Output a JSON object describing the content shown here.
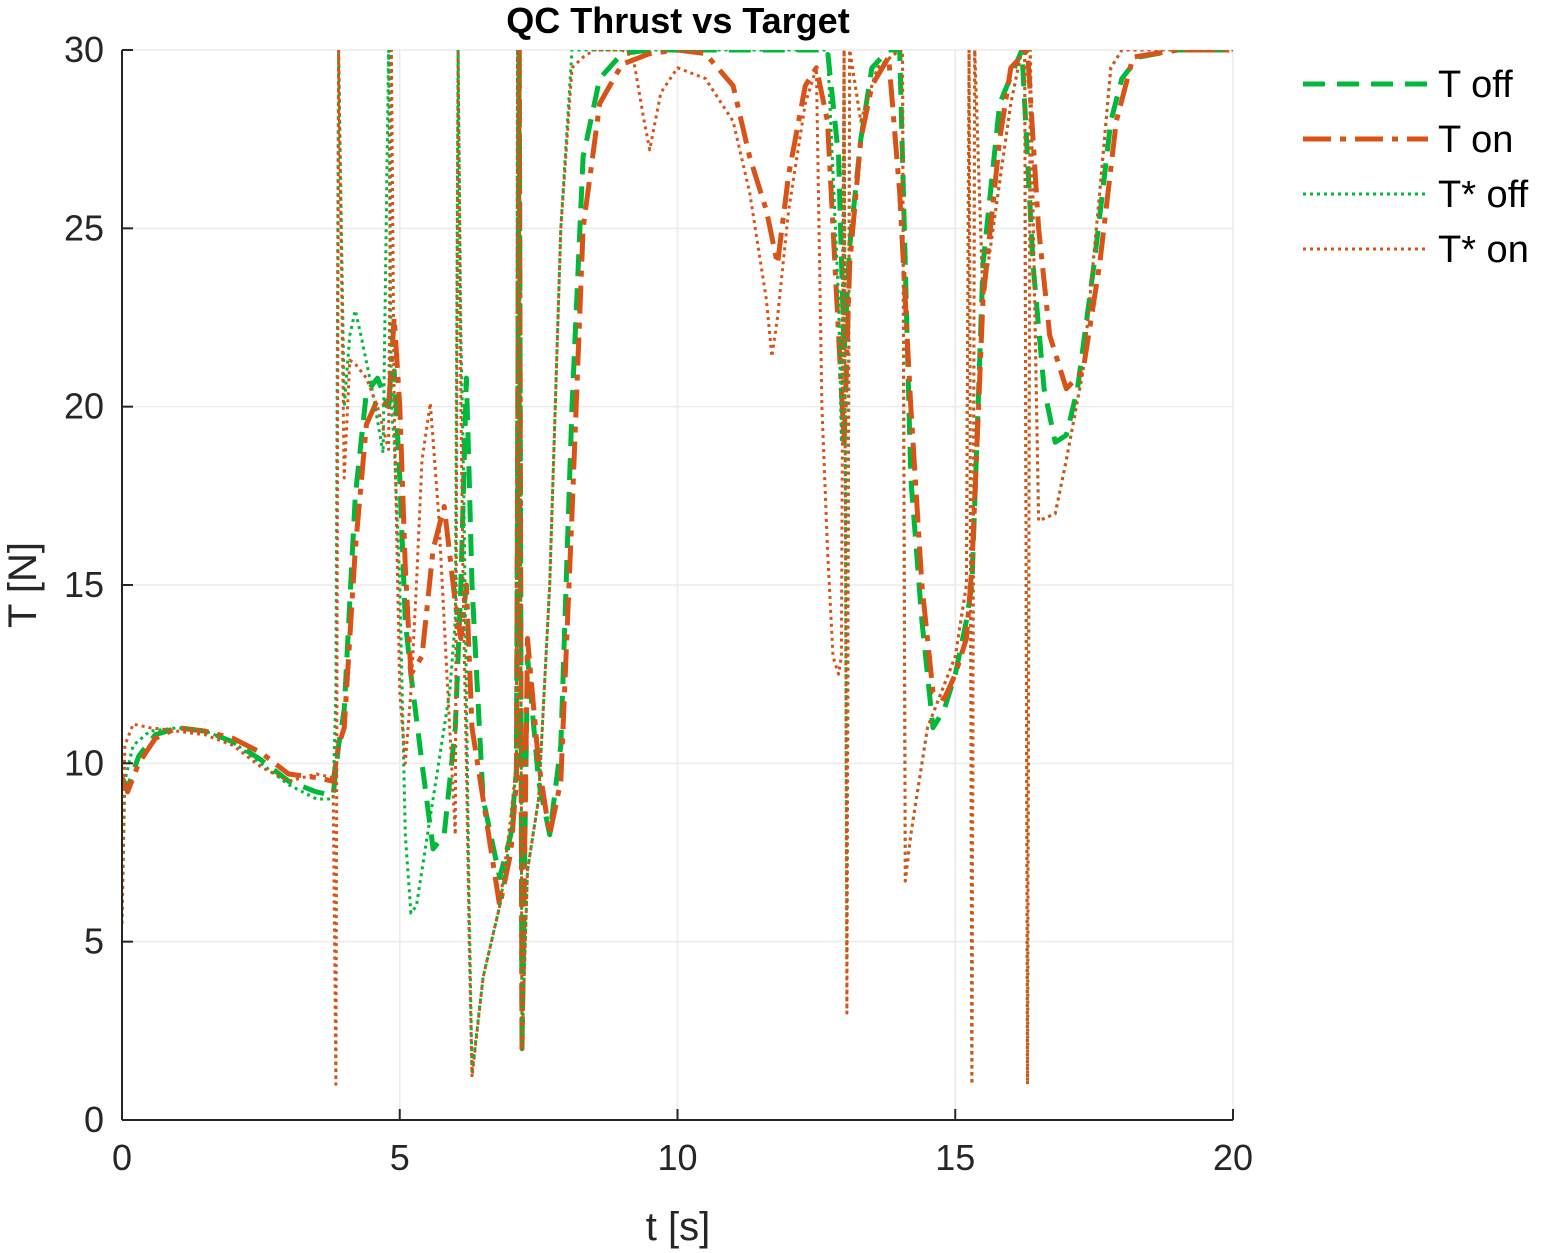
{
  "chart_data": {
    "type": "line",
    "title": "QC Thrust vs Target",
    "xlabel": "t [s]",
    "ylabel": "T [N]",
    "xlim": [
      0,
      20
    ],
    "ylim": [
      0,
      30
    ],
    "xticks": [
      0,
      5,
      10,
      15,
      20
    ],
    "yticks": [
      0,
      5,
      10,
      15,
      20,
      25,
      30
    ],
    "grid": true,
    "legend_position": "outside-top-right",
    "series": [
      {
        "name": "T off",
        "color": "#00b83a",
        "style": "dashed",
        "x": [
          0,
          0.1,
          0.3,
          0.6,
          1.0,
          1.5,
          2.0,
          2.5,
          3.0,
          3.5,
          3.8,
          3.9,
          4.0,
          4.2,
          4.4,
          4.6,
          4.8,
          4.9,
          5.0,
          5.1,
          5.2,
          5.4,
          5.6,
          5.8,
          6.0,
          6.1,
          6.2,
          6.25,
          6.3,
          6.5,
          6.8,
          7.0,
          7.1,
          7.15,
          7.2,
          7.3,
          7.5,
          7.7,
          7.9,
          8.1,
          8.3,
          8.6,
          9.0,
          9.5,
          10.0,
          11.0,
          12.0,
          12.5,
          12.7,
          12.9,
          13.0,
          13.1,
          13.3,
          13.5,
          13.8,
          14.0,
          14.2,
          14.4,
          14.6,
          14.8,
          15.0,
          15.2,
          15.3,
          15.5,
          15.8,
          16.2,
          16.4,
          16.6,
          16.8,
          17.0,
          17.2,
          17.5,
          17.8,
          18.0,
          18.3,
          19.0,
          20.0
        ],
        "values": [
          9.6,
          9.3,
          10.2,
          10.8,
          11.0,
          10.9,
          10.6,
          10.1,
          9.5,
          9.2,
          9.1,
          10.5,
          11.5,
          17.5,
          20.4,
          20.8,
          20.0,
          21.0,
          18.0,
          14.0,
          12.5,
          10.0,
          7.6,
          8.0,
          11.0,
          15.0,
          20.8,
          18.0,
          15.0,
          9.0,
          6.8,
          8.0,
          9.8,
          30.0,
          2.1,
          13.0,
          9.5,
          8.0,
          10.5,
          20.0,
          27.0,
          29.2,
          29.9,
          30.0,
          30.0,
          30.0,
          30.0,
          30.0,
          30.0,
          27.0,
          21.5,
          24.5,
          27.5,
          29.5,
          30.0,
          30.0,
          18.0,
          14.0,
          11.0,
          11.5,
          12.5,
          14.0,
          15.0,
          24.0,
          28.5,
          30.0,
          24.0,
          20.5,
          19.0,
          19.2,
          20.5,
          24.0,
          28.0,
          29.2,
          29.8,
          30.0,
          30.0
        ]
      },
      {
        "name": "T on",
        "color": "#d95319",
        "style": "dashdot",
        "x": [
          0,
          0.1,
          0.3,
          0.6,
          1.0,
          1.5,
          2.0,
          2.5,
          3.0,
          3.5,
          3.8,
          3.9,
          4.0,
          4.2,
          4.4,
          4.6,
          4.8,
          4.9,
          5.0,
          5.1,
          5.2,
          5.4,
          5.6,
          5.8,
          6.0,
          6.1,
          6.2,
          6.3,
          6.5,
          6.8,
          7.0,
          7.1,
          7.15,
          7.2,
          7.3,
          7.5,
          7.7,
          7.9,
          8.1,
          8.3,
          8.6,
          9.0,
          9.5,
          10.0,
          10.5,
          11.0,
          11.3,
          11.6,
          11.8,
          12.0,
          12.3,
          12.5,
          12.7,
          12.9,
          13.0,
          13.1,
          13.3,
          13.5,
          13.8,
          14.0,
          14.2,
          14.4,
          14.6,
          14.8,
          15.0,
          15.2,
          15.3,
          15.5,
          15.8,
          16.0,
          16.3,
          16.5,
          16.7,
          17.0,
          17.3,
          17.6,
          17.9,
          18.2,
          19.0,
          20.0
        ],
        "values": [
          9.6,
          9.2,
          10.0,
          10.7,
          11.0,
          10.9,
          10.7,
          10.3,
          9.7,
          9.6,
          9.5,
          10.5,
          11.0,
          16.0,
          19.5,
          20.2,
          20.0,
          22.5,
          20.0,
          15.5,
          12.5,
          13.0,
          16.0,
          17.2,
          14.5,
          13.5,
          15.0,
          11.0,
          9.0,
          6.0,
          7.5,
          9.5,
          30.0,
          2.0,
          13.5,
          10.0,
          8.0,
          9.5,
          17.0,
          25.0,
          28.5,
          29.6,
          29.9,
          30.0,
          29.9,
          29.0,
          27.0,
          25.5,
          24.0,
          26.5,
          29.0,
          29.5,
          28.0,
          22.0,
          19.0,
          24.0,
          27.5,
          29.0,
          29.8,
          26.0,
          20.0,
          15.0,
          12.0,
          11.8,
          12.5,
          13.5,
          15.5,
          23.0,
          27.5,
          29.5,
          30.0,
          25.0,
          22.0,
          20.5,
          21.0,
          24.0,
          28.0,
          29.8,
          30.0,
          30.0
        ]
      },
      {
        "name": "T* off",
        "color": "#00b83a",
        "style": "dotted",
        "x": [
          0,
          0.05,
          0.2,
          0.5,
          1.0,
          1.5,
          2.0,
          2.5,
          3.0,
          3.5,
          3.8,
          3.85,
          3.9,
          4.0,
          4.1,
          4.2,
          4.3,
          4.5,
          4.7,
          4.8,
          4.85,
          4.9,
          5.0,
          5.1,
          5.2,
          5.3,
          5.5,
          5.7,
          5.9,
          6.0,
          6.05,
          6.1,
          6.15,
          6.2,
          6.25,
          6.3,
          6.5,
          6.8,
          7.0,
          7.1,
          7.12,
          7.15,
          7.2,
          7.3,
          7.5,
          7.7,
          7.9,
          8.1,
          8.3,
          8.5,
          9.0,
          10.0,
          11.0,
          12.0,
          12.5,
          12.7,
          12.9,
          12.95,
          13.0,
          13.05,
          13.1,
          13.3,
          13.6,
          14.0,
          14.05,
          14.1,
          14.2,
          14.5,
          15.0,
          15.2,
          15.25,
          15.3,
          15.35,
          15.5,
          16.0,
          16.2,
          16.25,
          16.3,
          16.35,
          16.5,
          16.8,
          17.0,
          17.3,
          17.6,
          17.8,
          18.0,
          19.0,
          20.0
        ],
        "values": [
          5.5,
          9.5,
          10.5,
          10.9,
          11.0,
          10.9,
          10.6,
          10.0,
          9.4,
          9.0,
          9.0,
          12.0,
          30.0,
          20.0,
          22.0,
          22.7,
          22.0,
          20.5,
          18.7,
          30.0,
          20.0,
          19.0,
          15.0,
          8.0,
          5.8,
          6.0,
          8.0,
          10.0,
          12.0,
          14.0,
          30.0,
          22.0,
          18.0,
          12.0,
          6.0,
          1.3,
          4.0,
          6.0,
          8.0,
          10.0,
          30.0,
          30.0,
          2.0,
          7.0,
          9.0,
          15.0,
          25.0,
          30.0,
          30.0,
          30.0,
          30.0,
          30.0,
          30.0,
          30.0,
          30.0,
          30.0,
          23.0,
          19.0,
          30.0,
          4.5,
          30.0,
          28.0,
          29.5,
          30.0,
          30.0,
          6.7,
          8.0,
          11.0,
          13.0,
          15.0,
          30.0,
          1.0,
          30.0,
          23.0,
          28.5,
          30.0,
          30.0,
          1.0,
          30.0,
          16.8,
          17.0,
          18.5,
          21.0,
          26.0,
          29.5,
          30.0,
          30.0,
          30.0
        ]
      },
      {
        "name": "T* on",
        "color": "#d95319",
        "style": "dotted",
        "x": [
          0,
          0.05,
          0.2,
          0.5,
          1.0,
          1.5,
          2.0,
          2.5,
          3.0,
          3.5,
          3.8,
          3.85,
          3.9,
          4.0,
          4.1,
          4.2,
          4.4,
          4.6,
          4.8,
          4.85,
          4.9,
          5.0,
          5.1,
          5.2,
          5.3,
          5.4,
          5.55,
          5.7,
          5.9,
          6.0,
          6.05,
          6.1,
          6.15,
          6.2,
          6.25,
          6.3,
          6.5,
          6.8,
          7.0,
          7.1,
          7.12,
          7.15,
          7.2,
          7.3,
          7.5,
          7.7,
          7.9,
          8.1,
          8.3,
          8.5,
          9.0,
          9.2,
          9.4,
          9.5,
          9.7,
          10.0,
          10.5,
          11.0,
          11.3,
          11.6,
          11.7,
          11.8,
          12.0,
          12.3,
          12.5,
          12.6,
          12.7,
          12.8,
          12.9,
          12.95,
          13.0,
          13.05,
          13.1,
          13.3,
          13.6,
          14.0,
          14.05,
          14.1,
          14.2,
          14.5,
          15.0,
          15.2,
          15.25,
          15.3,
          15.35,
          15.5,
          16.0,
          16.2,
          16.25,
          16.3,
          16.35,
          16.5,
          16.8,
          17.0,
          17.3,
          17.6,
          17.8,
          18.0,
          19.0,
          20.0
        ],
        "values": [
          5.5,
          10.5,
          11.1,
          11.0,
          10.9,
          10.8,
          10.5,
          9.9,
          9.5,
          9.7,
          9.6,
          1.0,
          30.0,
          18.0,
          21.3,
          21.2,
          20.8,
          20.0,
          18.8,
          30.0,
          20.0,
          12.0,
          10.0,
          12.0,
          15.0,
          18.5,
          20.1,
          17.0,
          11.0,
          8.0,
          30.0,
          20.0,
          14.0,
          10.0,
          5.0,
          1.2,
          4.0,
          6.0,
          8.5,
          10.0,
          30.0,
          30.0,
          2.0,
          7.0,
          9.0,
          15.0,
          25.0,
          29.5,
          29.8,
          30.0,
          30.0,
          29.8,
          28.0,
          27.2,
          28.8,
          29.5,
          29.2,
          28.0,
          26.0,
          23.0,
          21.4,
          22.5,
          25.5,
          28.5,
          29.5,
          20.0,
          16.0,
          13.0,
          12.5,
          13.0,
          30.0,
          3.0,
          30.0,
          28.0,
          29.5,
          30.0,
          30.0,
          6.7,
          8.0,
          11.0,
          13.0,
          15.0,
          30.0,
          1.0,
          30.0,
          23.0,
          28.5,
          30.0,
          30.0,
          1.0,
          30.0,
          16.8,
          17.0,
          18.5,
          21.0,
          26.0,
          29.5,
          30.0,
          30.0,
          30.0
        ]
      }
    ]
  }
}
